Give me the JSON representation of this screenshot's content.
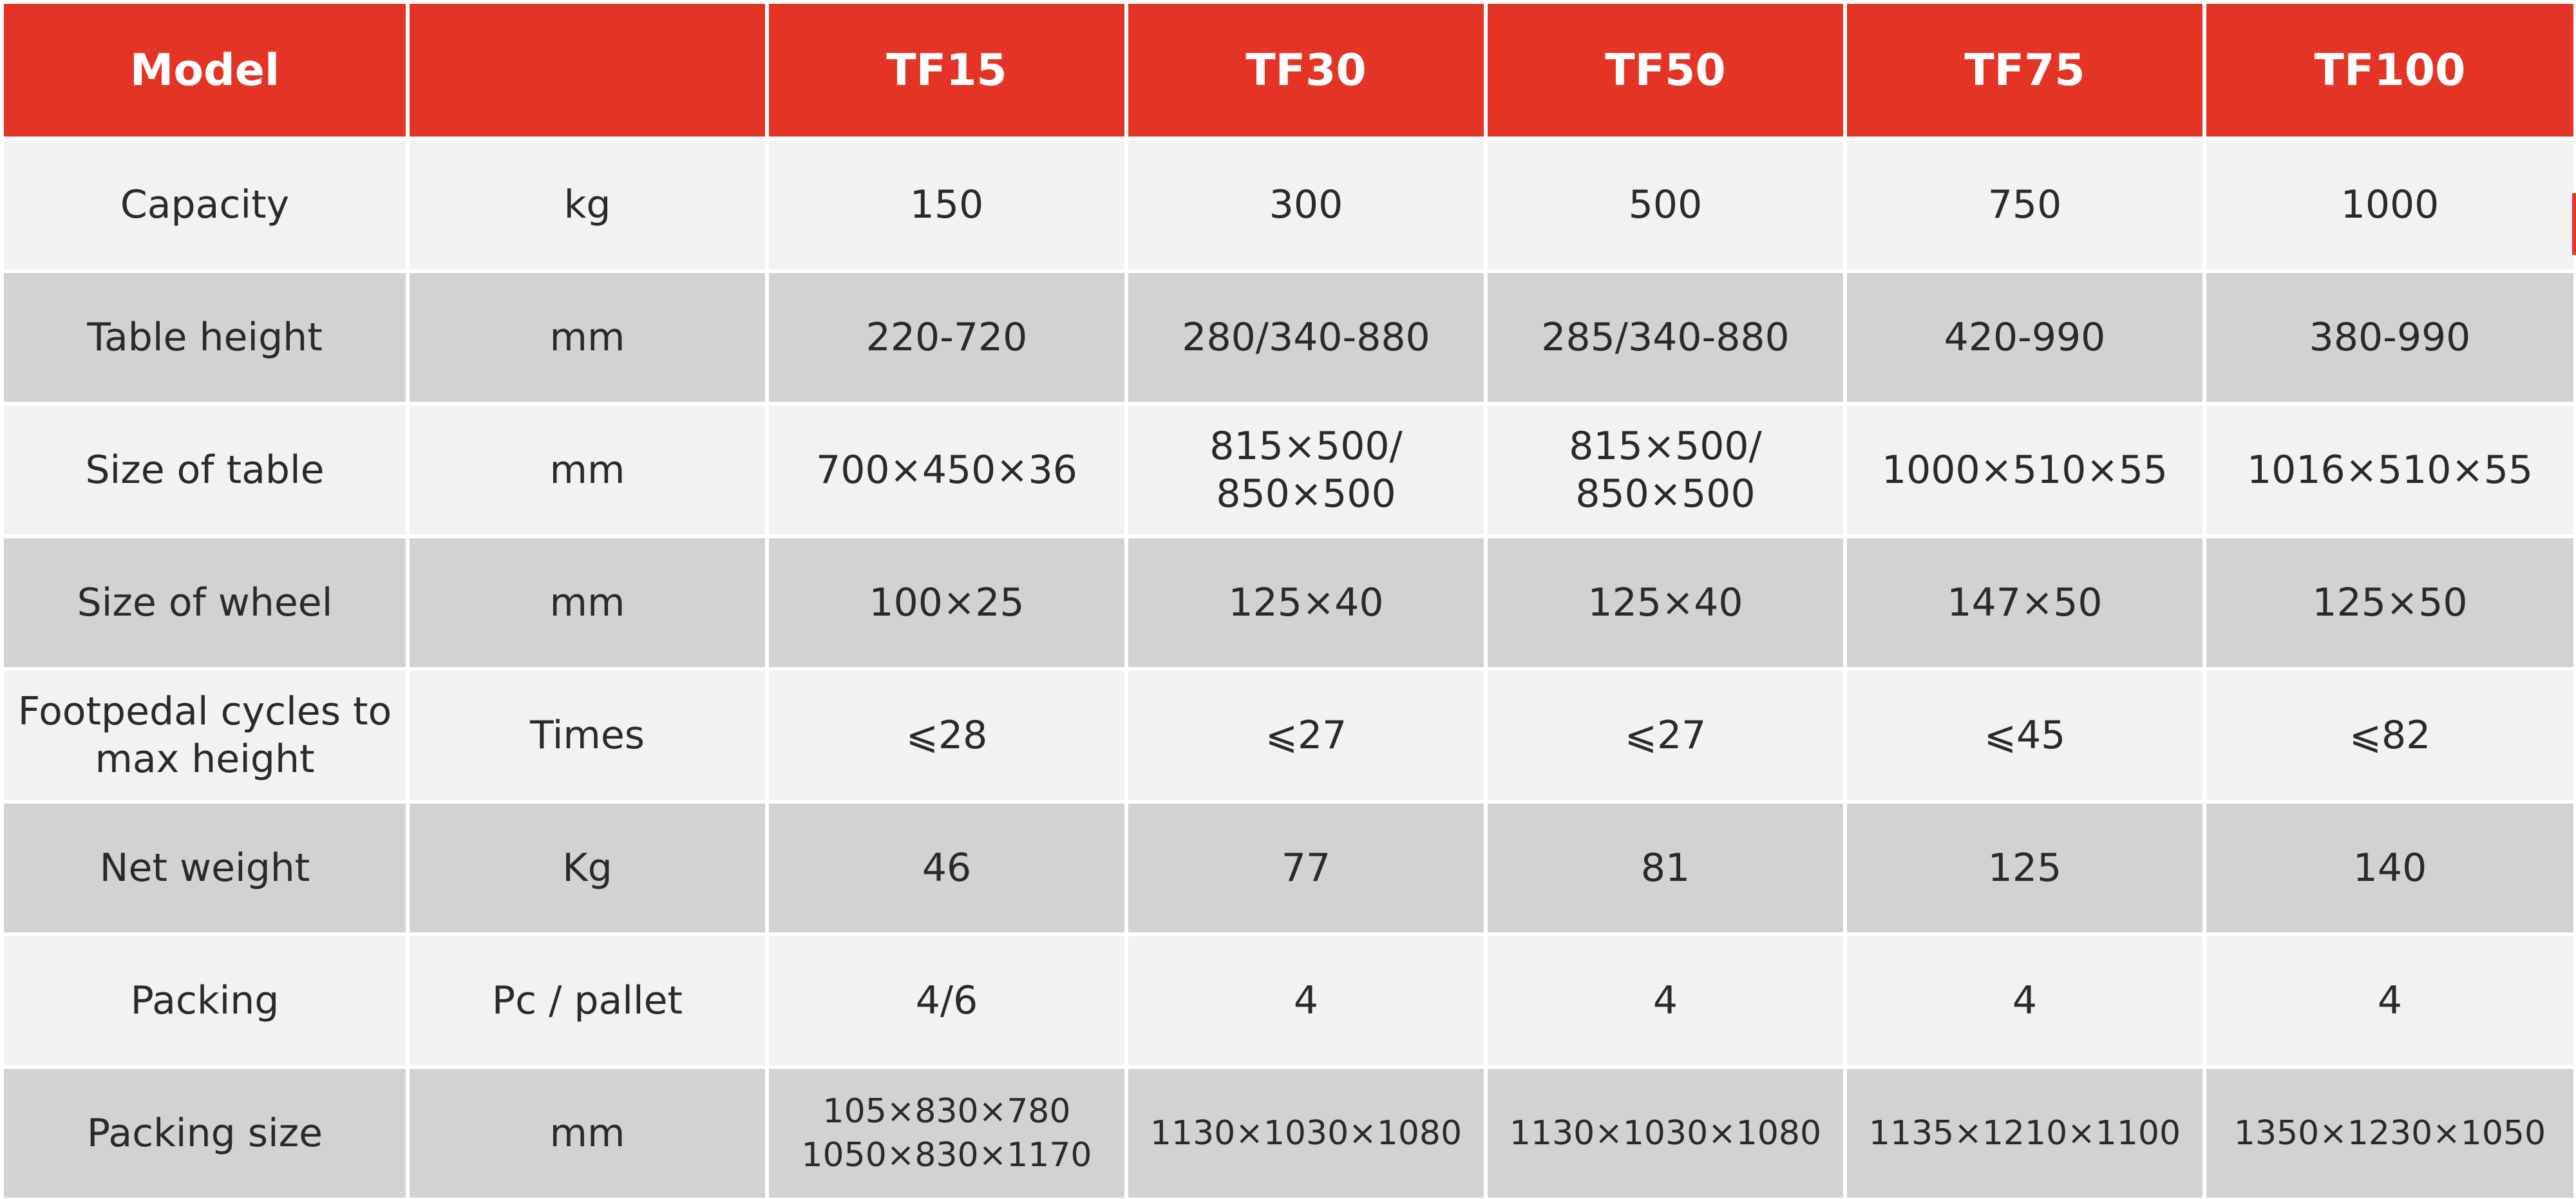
{
  "table": {
    "header": {
      "model_label": "Model",
      "unit_label": "",
      "models": [
        "TF15",
        "TF30",
        "TF50",
        "TF75",
        "TF100"
      ]
    },
    "rows": [
      {
        "parameter": "Capacity",
        "unit": "kg",
        "values": [
          [
            "150"
          ],
          [
            "300"
          ],
          [
            "500"
          ],
          [
            "750"
          ],
          [
            "1000"
          ]
        ]
      },
      {
        "parameter": "Table height",
        "unit": "mm",
        "values": [
          [
            "220-720"
          ],
          [
            "280/340-880"
          ],
          [
            "285/340-880"
          ],
          [
            "420-990"
          ],
          [
            "380-990"
          ]
        ]
      },
      {
        "parameter": "Size of table",
        "unit": "mm",
        "values": [
          [
            "700×450×36"
          ],
          [
            "815×500/",
            "850×500"
          ],
          [
            "815×500/",
            "850×500"
          ],
          [
            "1000×510×55"
          ],
          [
            "1016×510×55"
          ]
        ]
      },
      {
        "parameter": "Size of wheel",
        "unit": "mm",
        "values": [
          [
            "100×25"
          ],
          [
            "125×40"
          ],
          [
            "125×40"
          ],
          [
            "147×50"
          ],
          [
            "125×50"
          ]
        ]
      },
      {
        "parameter": "Footpedal cycles to max height",
        "unit": "Times",
        "values": [
          [
            "⩽28"
          ],
          [
            "⩽27"
          ],
          [
            "⩽27"
          ],
          [
            "⩽45"
          ],
          [
            "⩽82"
          ]
        ]
      },
      {
        "parameter": "Net weight",
        "unit": "Kg",
        "values": [
          [
            "46"
          ],
          [
            "77"
          ],
          [
            "81"
          ],
          [
            "125"
          ],
          [
            "140"
          ]
        ]
      },
      {
        "parameter": "Packing",
        "unit": "Pc / pallet",
        "values": [
          [
            "4/6"
          ],
          [
            "4"
          ],
          [
            "4"
          ],
          [
            "4"
          ],
          [
            "4"
          ]
        ]
      },
      {
        "parameter": "Packing size",
        "unit": "mm",
        "values": [
          [
            "105×830×780",
            "1050×830×1170"
          ],
          [
            "1130×1030×1080"
          ],
          [
            "1130×1030×1080"
          ],
          [
            "1135×1210×1100"
          ],
          [
            "1350×1230×1050"
          ]
        ],
        "small": true
      }
    ]
  },
  "colors": {
    "header_background": "#e33425",
    "header_text": "#ffffff",
    "row_light": "#f2f2f2",
    "row_dark": "#d2d2d2",
    "body_text": "#2a2a2a"
  }
}
